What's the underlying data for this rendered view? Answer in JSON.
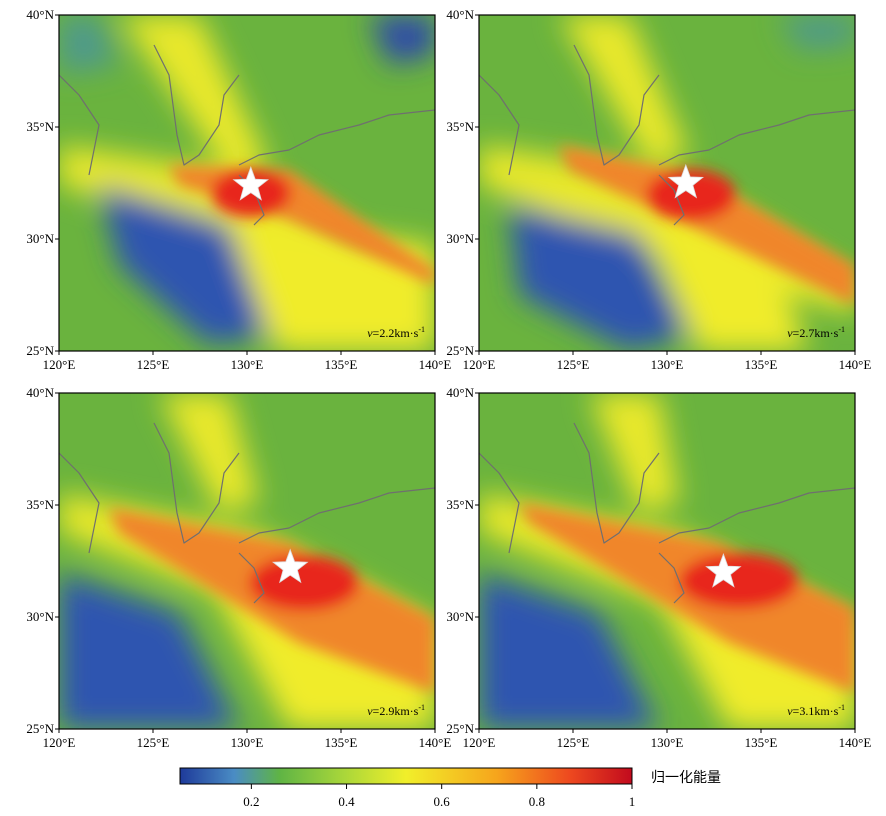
{
  "panels": [
    {
      "velocity_prefix": "v",
      "velocity_value": "=2.2km·s",
      "velocity_exp": "-1",
      "epicenter_lon": 130.2,
      "epicenter_lat": 32.4
    },
    {
      "velocity_prefix": "v",
      "velocity_value": "=2.7km·s",
      "velocity_exp": "-1",
      "epicenter_lon": 131.0,
      "epicenter_lat": 32.5
    },
    {
      "velocity_prefix": "v",
      "velocity_value": "=2.9km·s",
      "velocity_exp": "-1",
      "epicenter_lon": 132.3,
      "epicenter_lat": 32.2
    },
    {
      "velocity_prefix": "v",
      "velocity_value": "=3.1km·s",
      "velocity_exp": "-1",
      "epicenter_lon": 133.0,
      "epicenter_lat": 32.0
    }
  ],
  "axes": {
    "lon_ticks": [
      "120°E",
      "125°E",
      "130°E",
      "135°E",
      "140°E"
    ],
    "lat_ticks": [
      "40°N",
      "35°N",
      "30°N",
      "25°N"
    ],
    "lon_range": [
      120,
      140
    ],
    "lat_range": [
      25,
      40
    ]
  },
  "colorbar": {
    "title": "归一化能量",
    "ticks": [
      "0.2",
      "0.4",
      "0.6",
      "0.8",
      "1"
    ],
    "colors": [
      "#1e3a9a",
      "#4a8cc4",
      "#5fb445",
      "#a8d63a",
      "#f1ef2a",
      "#f6a51c",
      "#ee4a1f",
      "#c20a1e"
    ]
  },
  "markers": {
    "epicenter": "white-star-icon"
  }
}
